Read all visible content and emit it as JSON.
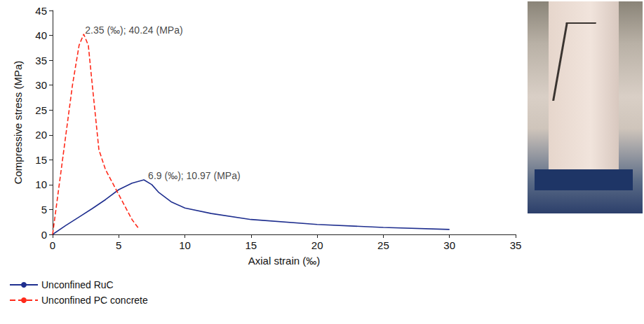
{
  "chart_data": {
    "type": "line",
    "x_label": "Axial strain (‰)",
    "y_label": "Compressive stress (MPa)",
    "xlim": [
      0,
      35
    ],
    "xticks": [
      0,
      5,
      10,
      15,
      20,
      25,
      30,
      35
    ],
    "ylim": [
      0,
      45
    ],
    "yticks": [
      0,
      5,
      10,
      15,
      20,
      25,
      30,
      35,
      40,
      45
    ],
    "grid": false,
    "legend": "bottom-left",
    "series": [
      {
        "name": "Unconfined RuC",
        "color": "#1f2f8f",
        "line_style": "solid",
        "x": [
          0,
          1,
          2,
          3,
          4,
          5,
          6,
          6.9,
          7.5,
          8,
          9,
          10,
          12,
          15,
          20,
          25,
          30
        ],
        "values": [
          0,
          1.8,
          3.5,
          5.2,
          7,
          9,
          10.3,
          10.97,
          10,
          8.5,
          6.5,
          5.3,
          4.2,
          3.0,
          2.0,
          1.4,
          1.0
        ]
      },
      {
        "name": "Unconfined PC concrete",
        "color": "#ff2a1a",
        "line_style": "dashed",
        "x": [
          0,
          0.5,
          1,
          1.5,
          2,
          2.35,
          2.7,
          3,
          3.5,
          4,
          5,
          6,
          6.5
        ],
        "values": [
          0,
          10,
          20,
          30,
          38,
          40.24,
          38,
          30,
          17,
          13,
          8,
          3,
          1.2
        ]
      }
    ],
    "annotations": [
      {
        "text": "2.35 (‰); 40.24 (MPa)",
        "x": 2.35,
        "y": 40.24
      },
      {
        "text": "6.9 (‰); 10.97 (MPa)",
        "x": 6.9,
        "y": 10.97
      }
    ]
  }
}
